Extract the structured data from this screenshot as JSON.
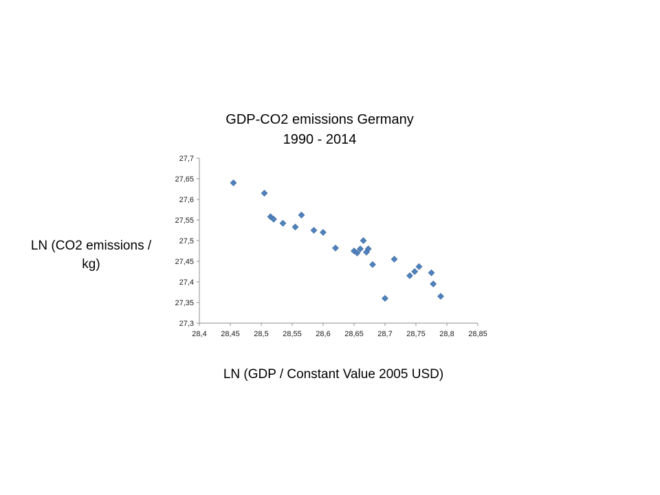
{
  "chart": {
    "title_line1": "GDP-CO2 emissions Germany",
    "title_line2": "1990 - 2014",
    "y_axis_label_line1": "LN (CO2 emissions /",
    "y_axis_label_line2": "kg)",
    "x_axis_label": "LN (GDP / Constant Value 2005 USD)"
  },
  "chart_data": {
    "type": "scatter",
    "title": "GDP-CO2 emissions Germany 1990 - 2014",
    "xlabel": "LN (GDP / Constant Value 2005 USD)",
    "ylabel": "LN (CO2 emissions / kg)",
    "xlim": [
      28.4,
      28.85
    ],
    "ylim": [
      27.3,
      27.7
    ],
    "x_tick_step": 0.05,
    "y_tick_step": 0.05,
    "x_tick_labels": [
      "28,4",
      "28,45",
      "28,5",
      "28,55",
      "28,6",
      "28,65",
      "28,7",
      "28,75",
      "28,8",
      "28,85"
    ],
    "y_tick_labels": [
      "27,3",
      "27,35",
      "27,4",
      "27,45",
      "27,5",
      "27,55",
      "27,6",
      "27,65",
      "27,7"
    ],
    "grid": false,
    "legend": false,
    "marker": "diamond",
    "marker_color": "#4F81BD",
    "axis_color": "#8c8c8c",
    "points": [
      [
        28.455,
        27.64
      ],
      [
        28.505,
        27.615
      ],
      [
        28.515,
        27.558
      ],
      [
        28.52,
        27.552
      ],
      [
        28.535,
        27.542
      ],
      [
        28.555,
        27.533
      ],
      [
        28.565,
        27.562
      ],
      [
        28.585,
        27.525
      ],
      [
        28.6,
        27.52
      ],
      [
        28.62,
        27.482
      ],
      [
        28.65,
        27.475
      ],
      [
        28.655,
        27.47
      ],
      [
        28.66,
        27.48
      ],
      [
        28.665,
        27.5
      ],
      [
        28.67,
        27.472
      ],
      [
        28.673,
        27.48
      ],
      [
        28.68,
        27.442
      ],
      [
        28.7,
        27.36
      ],
      [
        28.715,
        27.455
      ],
      [
        28.74,
        27.415
      ],
      [
        28.748,
        27.425
      ],
      [
        28.755,
        27.437
      ],
      [
        28.775,
        27.422
      ],
      [
        28.778,
        27.395
      ],
      [
        28.79,
        27.365
      ]
    ]
  }
}
